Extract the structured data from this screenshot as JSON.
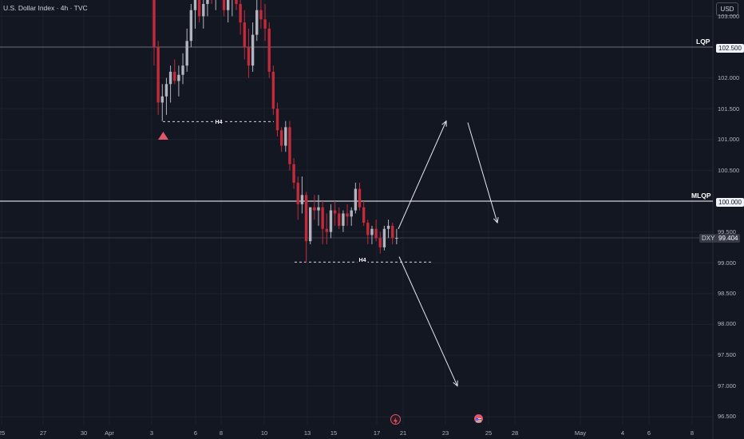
{
  "header": {
    "title": "U.S. Dollar Index · 4h · TVC",
    "currency": "USD"
  },
  "levels": [
    {
      "name": "LQP",
      "price": 102.5,
      "tag": "102.500"
    },
    {
      "name": "MLQP",
      "price": 100.0,
      "tag": "100.000"
    }
  ],
  "current": {
    "symbol": "DXY",
    "price_label": "99.404",
    "price": 99.404
  },
  "y_ticks": [
    "103.000",
    "102.000",
    "101.500",
    "101.000",
    "100.500",
    "99.500",
    "99.000",
    "98.500",
    "98.000",
    "97.500",
    "97.000",
    "96.500"
  ],
  "x_ticks": [
    "25",
    "27",
    "30",
    "Apr",
    "3",
    "6",
    "8",
    "10",
    "13",
    "15",
    "17",
    "21",
    "23",
    "25",
    "28",
    "May",
    "4",
    "6",
    "8"
  ],
  "annotations": {
    "h4_top": "H4",
    "h4_bottom": "H4"
  },
  "colors": {
    "bg": "#131722",
    "up": "#b2b5be",
    "down": "#c32a3a",
    "grid": "#1e222d"
  },
  "chart_data": {
    "type": "candlestick",
    "symbol": "DXY",
    "timeframe": "4h",
    "ylim": [
      96.4,
      103.1
    ],
    "levels": [
      {
        "label": "LQP",
        "value": 102.5
      },
      {
        "label": "MLQP",
        "value": 100.0
      }
    ],
    "liquidity_lines": [
      {
        "label": "H4",
        "value": 101.29
      },
      {
        "label": "H4",
        "value": 99.01
      }
    ],
    "projection": {
      "bullish_path": [
        99.55,
        101.3,
        99.65
      ],
      "bearish_path": [
        99.15,
        97.0
      ]
    },
    "candles": [
      [
        103.4,
        103.6,
        102.2,
        102.5
      ],
      [
        102.5,
        102.6,
        101.4,
        101.6
      ],
      [
        101.6,
        101.9,
        101.3,
        101.7
      ],
      [
        101.7,
        102.0,
        101.4,
        101.9
      ],
      [
        101.9,
        102.2,
        101.6,
        102.1
      ],
      [
        102.1,
        102.3,
        101.9,
        101.95
      ],
      [
        101.95,
        102.2,
        101.7,
        102.05
      ],
      [
        102.05,
        102.4,
        101.9,
        102.2
      ],
      [
        102.2,
        102.8,
        102.1,
        102.6
      ],
      [
        102.6,
        103.2,
        102.5,
        103.1
      ],
      [
        103.1,
        103.6,
        102.8,
        103.4
      ],
      [
        103.4,
        103.6,
        102.9,
        103.0
      ],
      [
        103.0,
        103.4,
        102.8,
        103.2
      ],
      [
        103.2,
        103.6,
        103.0,
        103.5
      ],
      [
        103.5,
        103.7,
        103.2,
        103.3
      ],
      [
        103.3,
        103.6,
        103.1,
        103.5
      ],
      [
        103.5,
        103.7,
        103.3,
        103.4
      ],
      [
        103.4,
        103.6,
        103.0,
        103.1
      ],
      [
        103.1,
        103.5,
        102.9,
        103.3
      ],
      [
        103.3,
        103.6,
        103.0,
        103.5
      ],
      [
        103.5,
        103.7,
        103.1,
        103.2
      ],
      [
        103.2,
        103.4,
        102.7,
        102.9
      ],
      [
        102.9,
        103.1,
        102.3,
        102.5
      ],
      [
        102.5,
        102.8,
        102.0,
        102.2
      ],
      [
        102.2,
        102.9,
        102.1,
        102.7
      ],
      [
        102.7,
        103.3,
        102.6,
        103.1
      ],
      [
        103.1,
        103.4,
        102.8,
        102.95
      ],
      [
        102.95,
        103.2,
        102.6,
        102.8
      ],
      [
        102.8,
        102.9,
        102.0,
        102.1
      ],
      [
        102.1,
        102.2,
        101.4,
        101.5
      ],
      [
        101.5,
        101.6,
        101.05,
        101.15
      ],
      [
        101.15,
        101.2,
        100.8,
        100.9
      ],
      [
        100.9,
        101.3,
        100.8,
        101.2
      ],
      [
        101.2,
        101.3,
        100.5,
        100.6
      ],
      [
        100.6,
        100.7,
        100.2,
        100.3
      ],
      [
        100.3,
        100.4,
        99.7,
        99.95
      ],
      [
        99.95,
        100.4,
        99.8,
        100.1
      ],
      [
        100.1,
        100.15,
        99.0,
        99.35
      ],
      [
        99.35,
        99.9,
        99.3,
        99.9
      ],
      [
        99.9,
        100.1,
        99.7,
        99.85
      ],
      [
        99.85,
        100.1,
        99.6,
        99.9
      ],
      [
        99.9,
        100.0,
        99.3,
        99.55
      ],
      [
        99.55,
        99.8,
        99.3,
        99.5
      ],
      [
        99.5,
        99.95,
        99.4,
        99.85
      ],
      [
        99.85,
        100.0,
        99.6,
        99.8
      ],
      [
        99.8,
        99.9,
        99.55,
        99.6
      ],
      [
        99.6,
        99.85,
        99.5,
        99.8
      ],
      [
        99.8,
        99.95,
        99.6,
        99.75
      ],
      [
        99.75,
        99.9,
        99.6,
        99.85
      ],
      [
        99.85,
        100.3,
        99.8,
        100.2
      ],
      [
        100.2,
        100.3,
        99.85,
        99.9
      ],
      [
        99.9,
        100.0,
        99.6,
        99.65
      ],
      [
        99.65,
        99.7,
        99.3,
        99.45
      ],
      [
        99.45,
        99.6,
        99.3,
        99.55
      ],
      [
        99.55,
        99.7,
        99.35,
        99.4
      ],
      [
        99.4,
        99.5,
        99.15,
        99.25
      ],
      [
        99.25,
        99.6,
        99.2,
        99.55
      ],
      [
        99.55,
        99.7,
        99.4,
        99.6
      ],
      [
        99.6,
        99.65,
        99.3,
        99.4
      ],
      [
        99.4,
        99.55,
        99.3,
        99.404
      ]
    ]
  }
}
